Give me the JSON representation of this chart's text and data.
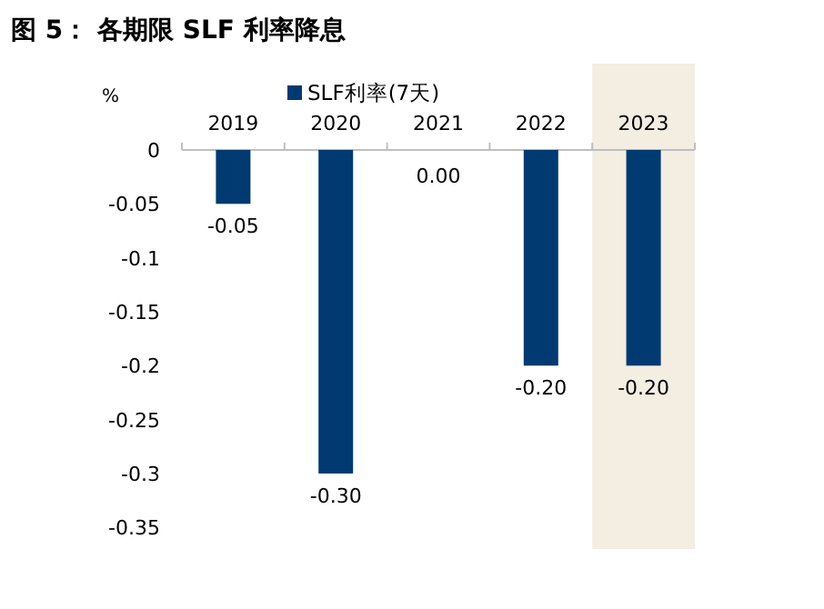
{
  "chart_data": {
    "type": "bar",
    "title": "图 5： 各期限 SLF 利率降息",
    "ylabel": "%",
    "categories": [
      "2019",
      "2020",
      "2021",
      "2022",
      "2023"
    ],
    "series": [
      {
        "name": "SLF利率(7天)",
        "color": "#003a70",
        "values": [
          -0.05,
          -0.3,
          0.0,
          -0.2,
          -0.2
        ],
        "value_labels": [
          "-0.05",
          "-0.30",
          "0.00",
          "-0.20",
          "-0.20"
        ]
      }
    ],
    "ylim": [
      -0.37,
      0.08
    ],
    "yticks": [
      0,
      -0.05,
      -0.1,
      -0.15,
      -0.2,
      -0.25,
      -0.3,
      -0.35
    ],
    "bands": [
      {
        "axis": "x",
        "from": "2023",
        "to": "2023",
        "color": "#f3ede2"
      }
    ],
    "legend": "top",
    "grid": false
  }
}
